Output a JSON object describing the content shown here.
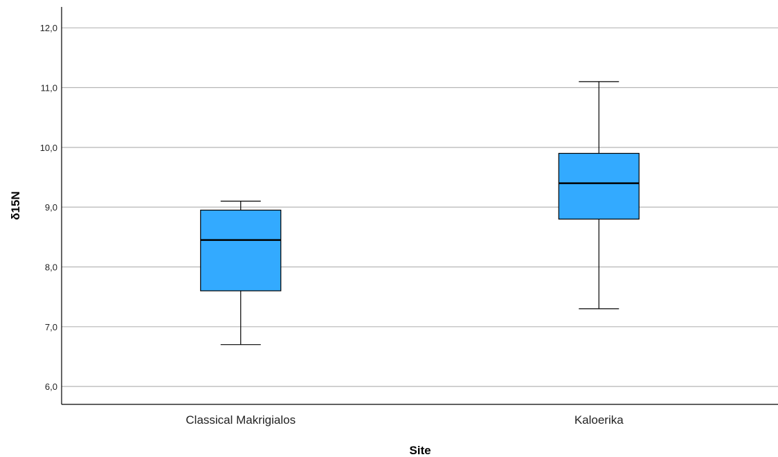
{
  "chart_data": {
    "type": "boxplot",
    "xlabel": "Site",
    "ylabel": "δ15N",
    "ylim": [
      5.7,
      12.35
    ],
    "yticks": [
      6.0,
      7.0,
      8.0,
      9.0,
      10.0,
      11.0,
      12.0
    ],
    "ytick_labels": [
      "6,0",
      "7,0",
      "8,0",
      "9,0",
      "10,0",
      "11,0",
      "12,0"
    ],
    "grid": true,
    "categories": [
      "Classical Makrigialos",
      "Kaloerika"
    ],
    "boxes": [
      {
        "category": "Classical Makrigialos",
        "min": 6.7,
        "q1": 7.6,
        "median": 8.45,
        "q3": 8.95,
        "max": 9.1
      },
      {
        "category": "Kaloerika",
        "min": 7.3,
        "q1": 8.8,
        "median": 9.4,
        "q3": 9.9,
        "max": 11.1
      }
    ],
    "colors": {
      "box_fill": "#33aaff",
      "stroke": "#000000",
      "grid": "#b5b5b5"
    }
  }
}
